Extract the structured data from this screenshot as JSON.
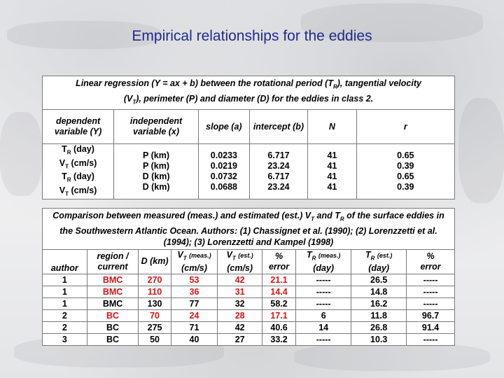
{
  "title": "Empirical relationships for the eddies",
  "table1": {
    "caption_line1": "Linear regression (Y = ax + b) between the rotational period (T",
    "caption_line1b": "), tangential velocity",
    "caption_line2a": "(V",
    "caption_line2b": "), perimeter (P) and diameter (D) for the eddies in class 2.",
    "headers": {
      "dep": "dependent variable (Y)",
      "indep": "independent variable (x)",
      "slope": "slope (a)",
      "intercept": "intercept (b)",
      "n": "N",
      "r": "r"
    },
    "col_dep": [
      {
        "main": "T",
        "sub": "R",
        "rest": " (day)"
      },
      {
        "main": "V",
        "sub": "T",
        "rest": " (cm/s)"
      },
      {
        "main": "T",
        "sub": "R",
        "rest": " (day)"
      },
      {
        "main": "V",
        "sub": "T",
        "rest": " (cm/s)"
      }
    ],
    "col_indep": [
      "P (km)",
      "P (km)",
      "D (km)",
      "D (km)"
    ],
    "col_slope": [
      "0.0233",
      "0.0219",
      "0.0732",
      "0.0688"
    ],
    "col_intercept": [
      "6.717",
      "23.24",
      "6.717",
      "23.24"
    ],
    "col_n": [
      "41",
      "41",
      "41",
      "41"
    ],
    "col_r": [
      "0.65",
      "0.39",
      "0.65",
      "0.39"
    ]
  },
  "table2": {
    "caption_a": "Comparison between measured (meas.) and estimated (est.) V",
    "caption_b": " and T",
    "caption_c": " of the surface eddies in the Southwestern Atlantic Ocean. Authors: (1) Chassignet et al. (1990); (2) Lorenzzetti et al. (1994); (3) Lorenzzetti and Kampel (1998)",
    "headers": {
      "author": "author",
      "region": "region / current",
      "d": "D (km)",
      "vt_meas": "(meas.)",
      "vt_est": "(est.)",
      "units_cms": "(cm/s)",
      "pct": "%",
      "error": "error",
      "tr_meas": "(meas.)",
      "tr_est": "(est.)",
      "units_day": "(day)"
    },
    "rows": [
      {
        "author": "1",
        "region": "BMC",
        "d": "270",
        "vt_meas": "53",
        "vt_est": "42",
        "err1": "21.1",
        "tr_meas": "-----",
        "tr_est": "26.5",
        "err2": "-----"
      },
      {
        "author": "1",
        "region": "BMC",
        "d": "110",
        "vt_meas": "36",
        "vt_est": "31",
        "err1": "14.4",
        "tr_meas": "-----",
        "tr_est": "14.8",
        "err2": "-----"
      },
      {
        "author": "1",
        "region": "BMC",
        "d": "130",
        "vt_meas": "77",
        "vt_est": "32",
        "err1": "58.2",
        "tr_meas": "-----",
        "tr_est": "16.2",
        "err2": "-----"
      },
      {
        "author": "2",
        "region": "BC",
        "d": "70",
        "vt_meas": "24",
        "vt_est": "28",
        "err1": "17.1",
        "tr_meas": "6",
        "tr_est": "11.8",
        "err2": "96.7"
      },
      {
        "author": "2",
        "region": "BC",
        "d": "275",
        "vt_meas": "71",
        "vt_est": "42",
        "err1": "40.6",
        "tr_meas": "14",
        "tr_est": "26.8",
        "err2": "91.4"
      },
      {
        "author": "3",
        "region": "BC",
        "d": "50",
        "vt_meas": "40",
        "vt_est": "27",
        "err1": "33.2",
        "tr_meas": "-----",
        "tr_est": "10.3",
        "err2": "-----"
      }
    ],
    "red_rows": [
      0,
      1,
      3
    ]
  },
  "colors": {
    "title": "#1f2a8c",
    "highlight": "#e01010"
  }
}
